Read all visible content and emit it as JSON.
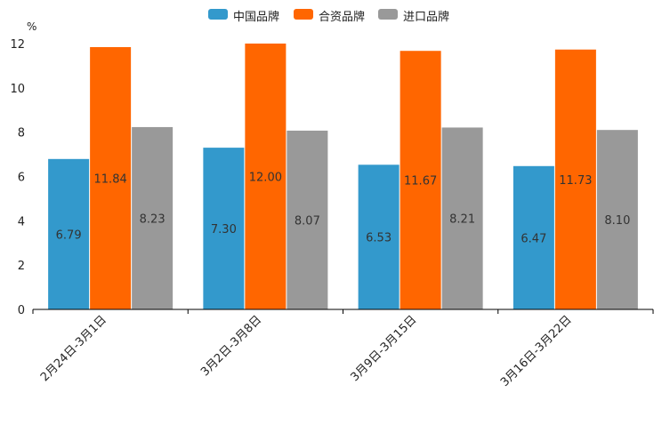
{
  "chart_data": {
    "type": "bar",
    "title": "",
    "ylabel": "%",
    "xlabel": "",
    "ylim": [
      0,
      12
    ],
    "yticks": [
      "0",
      "2",
      "4",
      "6",
      "8",
      "10",
      "12"
    ],
    "categories": [
      "2月24日-3月1日",
      "3月2日-3月8日",
      "3月9日-3月15日",
      "3月16日-3月22日"
    ],
    "series": [
      {
        "name": "中国品牌",
        "color": "#3399cc",
        "values": [
          6.79,
          7.3,
          6.53,
          6.47
        ],
        "labels": [
          "6.79",
          "7.30",
          "6.53",
          "6.47"
        ]
      },
      {
        "name": "合资品牌",
        "color": "#ff6600",
        "values": [
          11.84,
          12.0,
          11.67,
          11.73
        ],
        "labels": [
          "11.84",
          "12.00",
          "11.67",
          "11.73"
        ]
      },
      {
        "name": "进口品牌",
        "color": "#999999",
        "values": [
          8.23,
          8.07,
          8.21,
          8.1
        ],
        "labels": [
          "8.23",
          "8.07",
          "8.21",
          "8.10"
        ]
      }
    ],
    "legend_position": "top-center",
    "grid": false
  }
}
